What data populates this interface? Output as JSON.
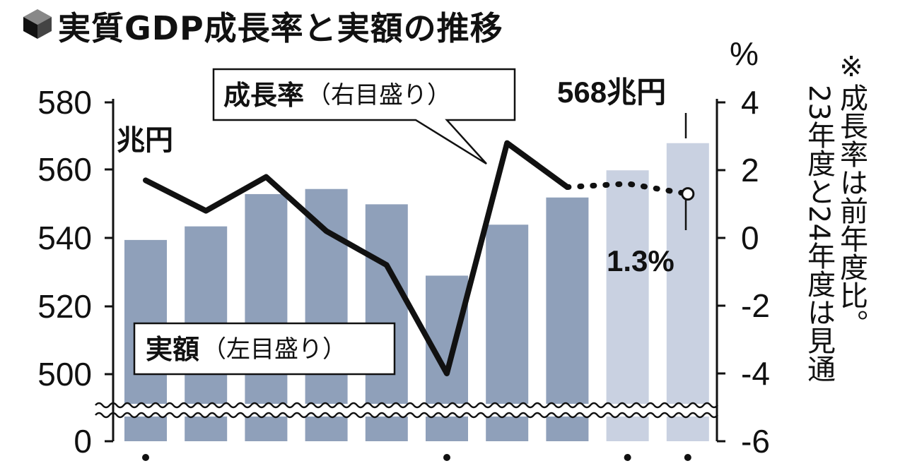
{
  "title": "実質GDP成長率と実額の推移",
  "note_line1": "※成長率は前年度比。",
  "note_line2": "23年度と24年度は見通",
  "chart_data": {
    "type": "bar",
    "categories": [
      "",
      "",
      "",
      "",
      "",
      "",
      "",
      "",
      "",
      ""
    ],
    "left_axis": {
      "unit": "兆円",
      "ticks": [
        "580",
        "560",
        "540",
        "520",
        "500",
        "0"
      ],
      "ylim": [
        500,
        580
      ],
      "broken": true
    },
    "right_axis": {
      "unit": "%",
      "ticks": [
        "4",
        "2",
        "0",
        "-2",
        "-4",
        "-6"
      ],
      "ylim": [
        -6,
        4
      ]
    },
    "series": [
      {
        "name": "実額（左目盛り）",
        "type": "bar",
        "values": [
          539.5,
          543.5,
          553,
          554.5,
          550,
          529,
          544,
          552,
          560,
          568
        ],
        "projected": [
          false,
          false,
          false,
          false,
          false,
          false,
          false,
          false,
          true,
          true
        ]
      },
      {
        "name": "成長率（右目盛り）",
        "type": "line",
        "values": [
          1.7,
          0.8,
          1.8,
          0.2,
          -0.8,
          -4.0,
          2.8,
          1.5,
          1.6,
          1.3
        ],
        "projected": [
          false,
          false,
          false,
          false,
          false,
          false,
          false,
          false,
          true,
          true
        ]
      }
    ],
    "annotations": [
      {
        "text": "568兆円"
      },
      {
        "text": "1.3%"
      }
    ]
  },
  "labels": {
    "growth_callout_bold": "成長率",
    "growth_callout_light": "（右目盛り）",
    "amount_callout_bold": "実額",
    "amount_callout_light": "（左目盛り）"
  },
  "colors": {
    "bar_actual": "#8fa0ba",
    "bar_projected": "#c9d1e1",
    "line": "#111111",
    "axis": "#111111"
  }
}
